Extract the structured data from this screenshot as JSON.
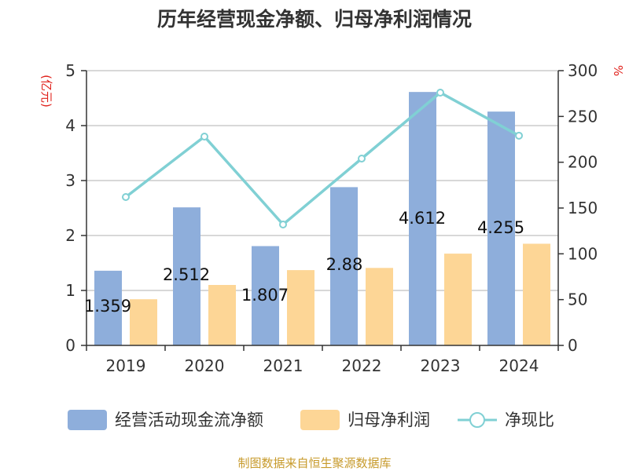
{
  "chart_data": {
    "type": "bar",
    "title": "历年经营现金净额、归母净利润情况",
    "categories": [
      "2019",
      "2020",
      "2021",
      "2022",
      "2023",
      "2024"
    ],
    "series": [
      {
        "name": "经营活动现金流净额",
        "type": "bar",
        "axis": "left",
        "color": "#8eaedb",
        "values": [
          1.359,
          2.512,
          1.807,
          2.88,
          4.612,
          4.255
        ]
      },
      {
        "name": "归母净利润",
        "type": "bar",
        "axis": "left",
        "color": "#fdd696",
        "values": [
          0.84,
          1.1,
          1.37,
          1.41,
          1.67,
          1.85
        ]
      },
      {
        "name": "净现比",
        "type": "line",
        "axis": "right",
        "color": "#80d0d4",
        "values": [
          162,
          228,
          132,
          204,
          276,
          229
        ]
      }
    ],
    "data_labels": [
      "1.359",
      "2.512",
      "1.807",
      "2.88",
      "4.612",
      "4.255"
    ],
    "left_axis": {
      "unit": "(亿元)",
      "min": 0,
      "max": 5,
      "ticks": [
        "0",
        "1",
        "2",
        "3",
        "4",
        "5"
      ]
    },
    "right_axis": {
      "unit": "%",
      "min": 0,
      "max": 300,
      "ticks": [
        "0",
        "50",
        "100",
        "150",
        "200",
        "250",
        "300"
      ]
    },
    "grid": true,
    "legend_position": "bottom"
  },
  "source_note": "制图数据来自恒生聚源数据库"
}
